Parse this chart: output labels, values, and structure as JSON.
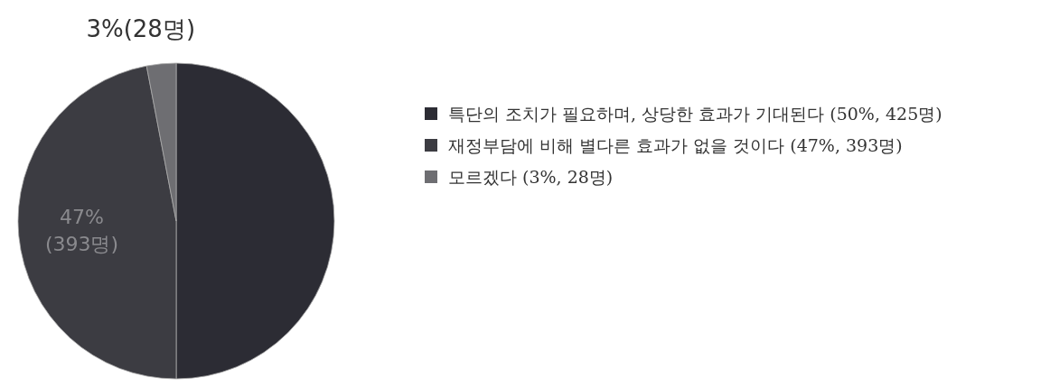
{
  "chart_data": {
    "type": "pie",
    "categories": [
      "특단의 조치가 필요하며, 상당한 효과가 기대된다 (50%, 425명)",
      "재정부담에 비해 별다른 효과가 없을 것이다 (47%, 393명)",
      "모르겠다 (3%, 28명)"
    ],
    "values": [
      50,
      47,
      3
    ],
    "colors": [
      "#2c2c34",
      "#3c3c42",
      "#6e6e72"
    ],
    "value_labels": [
      null,
      "47% (393명)",
      "3%(28명)"
    ],
    "legend": "right"
  }
}
